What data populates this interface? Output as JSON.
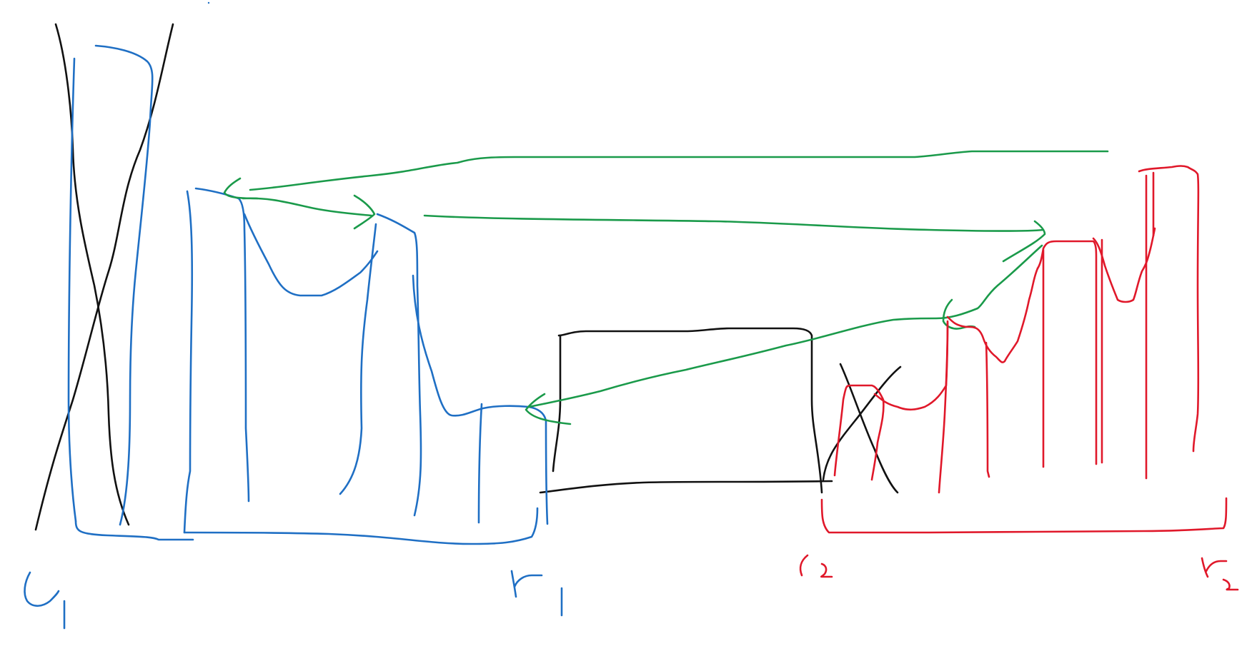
{
  "colors": {
    "black": "#111111",
    "blue": "#1f6fc4",
    "green": "#1a9a4a",
    "red": "#e0182a"
  },
  "labels": {
    "l1": "l1",
    "r1": "r1",
    "l2": "l2",
    "r2": "r2"
  }
}
